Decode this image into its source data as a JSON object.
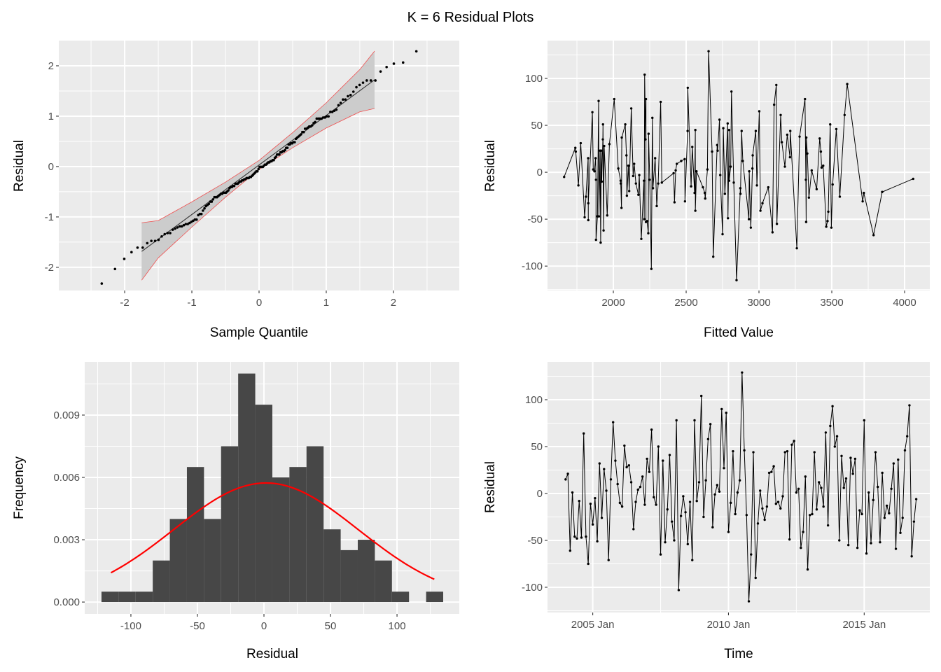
{
  "title": "K = 6 Residual Plots",
  "chart_data": [
    {
      "type": "scatter",
      "kind": "qq-plot",
      "xlabel": "Sample Quantile",
      "ylabel": "Residual",
      "xlim": [
        -2.98,
        2.98
      ],
      "ylim": [
        -2.46,
        2.5
      ],
      "xticks": [
        {
          "v": -2,
          "label": "-2"
        },
        {
          "v": -1,
          "label": "-1"
        },
        {
          "v": 0,
          "label": "0"
        },
        {
          "v": 1,
          "label": "1"
        },
        {
          "v": 2,
          "label": "2"
        }
      ],
      "yticks": [
        {
          "v": -2,
          "label": "-2"
        },
        {
          "v": -1,
          "label": "-1"
        },
        {
          "v": 0,
          "label": "0"
        },
        {
          "v": 1,
          "label": "1"
        },
        {
          "v": 2,
          "label": "2"
        }
      ],
      "reference_line": {
        "slope": 0.983,
        "intercept": 0.032,
        "x_range": [
          -1.747,
          1.719
        ]
      },
      "confidence_band": {
        "x": [
          -1.747,
          -1.5,
          -1.0,
          -0.5,
          0,
          0.5,
          1.0,
          1.5,
          1.719
        ],
        "half_width": [
          0.57,
          0.37,
          0.25,
          0.15,
          0.09,
          0.15,
          0.25,
          0.42,
          0.57
        ]
      },
      "grid": true,
      "colors": {
        "points": "#000000",
        "line": "#333333",
        "band_fill": "#cccccc",
        "band_edge": "#f05050"
      }
    },
    {
      "type": "line",
      "xlabel": "Fitted Value",
      "ylabel": "Residual",
      "xlim": [
        1548,
        4173
      ],
      "ylim": [
        -126,
        140.3
      ],
      "xticks": [
        {
          "v": 2000,
          "label": "2000"
        },
        {
          "v": 2500,
          "label": "2500"
        },
        {
          "v": 3000,
          "label": "3000"
        },
        {
          "v": 3500,
          "label": "3500"
        },
        {
          "v": 4000,
          "label": "4000"
        }
      ],
      "yticks": [
        {
          "v": -100,
          "label": "-100"
        },
        {
          "v": -50,
          "label": "-50"
        },
        {
          "v": 0,
          "label": "0"
        },
        {
          "v": 50,
          "label": "50"
        },
        {
          "v": 100,
          "label": "100"
        }
      ],
      "grid": true,
      "points": [
        [
          1662,
          -5
        ],
        [
          1739,
          26
        ],
        [
          1742,
          22
        ],
        [
          1760,
          -14
        ],
        [
          1776,
          31
        ],
        [
          1803,
          -48
        ],
        [
          1812,
          -26
        ],
        [
          1827,
          15
        ],
        [
          1828,
          -51
        ],
        [
          1828,
          -33
        ],
        [
          1856,
          64
        ],
        [
          1862,
          3
        ],
        [
          1870,
          1
        ],
        [
          1878,
          15
        ],
        [
          1881,
          -8
        ],
        [
          1881,
          -72
        ],
        [
          1891,
          -47
        ],
        [
          1899,
          76
        ],
        [
          1901,
          -47
        ],
        [
          1909,
          23
        ],
        [
          1913,
          -75
        ],
        [
          1917,
          23
        ],
        [
          1920,
          -10
        ],
        [
          1928,
          35
        ],
        [
          1929,
          51
        ],
        [
          1933,
          -62
        ],
        [
          1937,
          28
        ],
        [
          1958,
          -46
        ],
        [
          1973,
          30
        ],
        [
          2006,
          78
        ],
        [
          2034,
          4
        ],
        [
          2050,
          -9
        ],
        [
          2051,
          -12
        ],
        [
          2056,
          -38
        ],
        [
          2058,
          37
        ],
        [
          2082,
          51
        ],
        [
          2090,
          18
        ],
        [
          2093,
          -25
        ],
        [
          2103,
          7
        ],
        [
          2109,
          -20
        ],
        [
          2123,
          68
        ],
        [
          2136,
          -4
        ],
        [
          2143,
          9
        ],
        [
          2155,
          -12
        ],
        [
          2172,
          -24
        ],
        [
          2178,
          -3
        ],
        [
          2192,
          -71
        ],
        [
          2210,
          -9
        ],
        [
          2212,
          -50
        ],
        [
          2215,
          104
        ],
        [
          2221,
          35
        ],
        [
          2224,
          78
        ],
        [
          2224,
          -53
        ],
        [
          2232,
          -52
        ],
        [
          2240,
          -65
        ],
        [
          2242,
          41
        ],
        [
          2250,
          -8
        ],
        [
          2261,
          -103
        ],
        [
          2268,
          58
        ],
        [
          2272,
          -17
        ],
        [
          2287,
          15
        ],
        [
          2298,
          -36
        ],
        [
          2308,
          -12
        ],
        [
          2325,
          75
        ],
        [
          2333,
          -11
        ],
        [
          2414,
          -1
        ],
        [
          2420,
          -32
        ],
        [
          2428,
          2
        ],
        [
          2436,
          9
        ],
        [
          2466,
          12
        ],
        [
          2490,
          14
        ],
        [
          2492,
          -31
        ],
        [
          2510,
          44
        ],
        [
          2511,
          90
        ],
        [
          2534,
          -15
        ],
        [
          2542,
          27
        ],
        [
          2558,
          -22
        ],
        [
          2563,
          45
        ],
        [
          2563,
          -41
        ],
        [
          2571,
          1
        ],
        [
          2615,
          -16
        ],
        [
          2628,
          -22
        ],
        [
          2631,
          -28
        ],
        [
          2646,
          3
        ],
        [
          2654,
          129
        ],
        [
          2678,
          22
        ],
        [
          2686,
          -90
        ],
        [
          2713,
          29
        ],
        [
          2716,
          23
        ],
        [
          2729,
          56
        ],
        [
          2734,
          -3
        ],
        [
          2750,
          -66
        ],
        [
          2755,
          47
        ],
        [
          2766,
          -23
        ],
        [
          2785,
          52
        ],
        [
          2787,
          -49
        ],
        [
          2795,
          45
        ],
        [
          2795,
          -9
        ],
        [
          2806,
          6
        ],
        [
          2811,
          86
        ],
        [
          2827,
          -11
        ],
        [
          2846,
          -115
        ],
        [
          2872,
          -17
        ],
        [
          2873,
          -23
        ],
        [
          2881,
          44
        ],
        [
          2889,
          12
        ],
        [
          2931,
          -50
        ],
        [
          2933,
          1
        ],
        [
          2944,
          -59
        ],
        [
          2955,
          4
        ],
        [
          2957,
          18
        ],
        [
          2978,
          44
        ],
        [
          2986,
          -14
        ],
        [
          3002,
          65
        ],
        [
          3010,
          -41
        ],
        [
          3024,
          -33
        ],
        [
          3064,
          -16
        ],
        [
          3093,
          -64
        ],
        [
          3104,
          72
        ],
        [
          3119,
          93
        ],
        [
          3123,
          -55
        ],
        [
          3149,
          61
        ],
        [
          3157,
          32
        ],
        [
          3178,
          6
        ],
        [
          3194,
          40
        ],
        [
          3213,
          16
        ],
        [
          3215,
          44
        ],
        [
          3260,
          -81
        ],
        [
          3279,
          38
        ],
        [
          3316,
          78
        ],
        [
          3322,
          -8
        ],
        [
          3324,
          -53
        ],
        [
          3325,
          37
        ],
        [
          3332,
          20
        ],
        [
          3343,
          -27
        ],
        [
          3362,
          2
        ],
        [
          3396,
          -18
        ],
        [
          3417,
          36
        ],
        [
          3425,
          22
        ],
        [
          3430,
          5
        ],
        [
          3441,
          7
        ],
        [
          3462,
          -58
        ],
        [
          3471,
          -52
        ],
        [
          3476,
          -42
        ],
        [
          3489,
          51
        ],
        [
          3497,
          -59
        ],
        [
          3506,
          -13
        ],
        [
          3531,
          46
        ],
        [
          3555,
          -26
        ],
        [
          3588,
          61
        ],
        [
          3606,
          94
        ],
        [
          3712,
          -31
        ],
        [
          3720,
          -22
        ],
        [
          3787,
          -67
        ],
        [
          3846,
          -21
        ],
        [
          4059,
          -7
        ]
      ]
    },
    {
      "type": "bar",
      "kind": "histogram",
      "xlabel": "Residual",
      "ylabel": "Frequency",
      "xlim": [
        -134.7,
        146.8
      ],
      "ylim": [
        -0.00057,
        0.01156
      ],
      "xticks": [
        {
          "v": -100,
          "label": "-100"
        },
        {
          "v": -50,
          "label": "-50"
        },
        {
          "v": 0,
          "label": "0"
        },
        {
          "v": 50,
          "label": "50"
        },
        {
          "v": 100,
          "label": "100"
        }
      ],
      "yticks": [
        {
          "v": 0,
          "label": "0.000"
        },
        {
          "v": 0.003,
          "label": "0.003"
        },
        {
          "v": 0.006,
          "label": "0.006"
        },
        {
          "v": 0.009,
          "label": "0.009"
        }
      ],
      "grid": true,
      "bin_edges": [
        -122.1,
        -109.26,
        -96.42,
        -83.58,
        -70.74,
        -57.9,
        -45.06,
        -32.22,
        -19.38,
        -6.54,
        6.3,
        19.14,
        31.98,
        44.82,
        57.66,
        70.5,
        83.34,
        96.18,
        109.02,
        121.86,
        134.7
      ],
      "density": [
        0.0005,
        0.0005,
        0.0005,
        0.002,
        0.004,
        0.0065,
        0.004,
        0.0075,
        0.011,
        0.0095,
        0.006,
        0.0065,
        0.0075,
        0.0035,
        0.0025,
        0.003,
        0.002,
        0.0005,
        0,
        0.0005
      ],
      "normal_curve": {
        "mean": 1.5,
        "sd": 69.6,
        "x_range": [
          -115,
          128
        ]
      },
      "colors": {
        "bars": "#474747",
        "curve": "#ff0000"
      }
    },
    {
      "type": "line",
      "xlabel": "Time",
      "ylabel": "Residual",
      "xlim": [
        "2003-05",
        "2017-06"
      ],
      "ylim": [
        -126.9,
        140.3
      ],
      "xticks": [
        {
          "v": "2005-01",
          "label": "2005 Jan"
        },
        {
          "v": "2010-01",
          "label": "2010 Jan"
        },
        {
          "v": "2015-01",
          "label": "2015 Jan"
        }
      ],
      "yticks": [
        {
          "v": -100,
          "label": "-100"
        },
        {
          "v": -50,
          "label": "-50"
        },
        {
          "v": 0,
          "label": "0"
        },
        {
          "v": 50,
          "label": "50"
        },
        {
          "v": 100,
          "label": "100"
        }
      ],
      "grid": true,
      "x": [
        "2004-01",
        "2004-02",
        "2004-03",
        "2004-04",
        "2004-05",
        "2004-06",
        "2004-07",
        "2004-08",
        "2004-09",
        "2004-10",
        "2004-11",
        "2004-12",
        "2005-01",
        "2005-02",
        "2005-03",
        "2005-04",
        "2005-05",
        "2005-06",
        "2005-07",
        "2005-08",
        "2005-09",
        "2005-10",
        "2005-11",
        "2005-12",
        "2006-01",
        "2006-02",
        "2006-03",
        "2006-04",
        "2006-05",
        "2006-06",
        "2006-07",
        "2006-08",
        "2006-09",
        "2006-10",
        "2006-11",
        "2006-12",
        "2007-01",
        "2007-02",
        "2007-03",
        "2007-04",
        "2007-05",
        "2007-06",
        "2007-07",
        "2007-08",
        "2007-09",
        "2007-10",
        "2007-11",
        "2007-12",
        "2008-01",
        "2008-02",
        "2008-03",
        "2008-04",
        "2008-05",
        "2008-06",
        "2008-07",
        "2008-08",
        "2008-09",
        "2008-10",
        "2008-11",
        "2008-12",
        "2009-01",
        "2009-02",
        "2009-03",
        "2009-04",
        "2009-05",
        "2009-06",
        "2009-07",
        "2009-08",
        "2009-09",
        "2009-10",
        "2009-11",
        "2009-12",
        "2010-01",
        "2010-02",
        "2010-03",
        "2010-04",
        "2010-05",
        "2010-06",
        "2010-07",
        "2010-08",
        "2010-09",
        "2010-10",
        "2010-11",
        "2010-12",
        "2011-01",
        "2011-02",
        "2011-03",
        "2011-04",
        "2011-05",
        "2011-06",
        "2011-07",
        "2011-08",
        "2011-09",
        "2011-10",
        "2011-11",
        "2011-12",
        "2012-01",
        "2012-02",
        "2012-03",
        "2012-04",
        "2012-05",
        "2012-06",
        "2012-07",
        "2012-08",
        "2012-09",
        "2012-10",
        "2012-11",
        "2012-12",
        "2013-01",
        "2013-02",
        "2013-03",
        "2013-04",
        "2013-05",
        "2013-06",
        "2013-07",
        "2013-08",
        "2013-09",
        "2013-10",
        "2013-11",
        "2013-12",
        "2014-01",
        "2014-02",
        "2014-03",
        "2014-04",
        "2014-05",
        "2014-06",
        "2014-07",
        "2014-08",
        "2014-09",
        "2014-10",
        "2014-11",
        "2014-12",
        "2015-01",
        "2015-02",
        "2015-03",
        "2015-04",
        "2015-05",
        "2015-06",
        "2015-07",
        "2015-08",
        "2015-09",
        "2015-10",
        "2015-11",
        "2015-12",
        "2016-01",
        "2016-02",
        "2016-03",
        "2016-04",
        "2016-05",
        "2016-06",
        "2016-07",
        "2016-08",
        "2016-09",
        "2016-10",
        "2016-11",
        "2016-12"
      ],
      "values": [
        15,
        21,
        -61,
        1,
        -46,
        -48,
        -8,
        -47,
        64,
        -46,
        -75,
        -11,
        -33,
        -5,
        -51,
        32,
        -26,
        26,
        3,
        -71,
        15,
        76,
        35,
        10,
        -10,
        -14,
        51,
        28,
        30,
        12,
        -38,
        -9,
        4,
        7,
        18,
        -12,
        37,
        23,
        68,
        -4,
        -12,
        50,
        -65,
        35,
        -52,
        -17,
        41,
        -30,
        -50,
        78,
        -103,
        -24,
        -3,
        -20,
        -54,
        -9,
        -71,
        78,
        -8,
        12,
        104,
        -25,
        14,
        58,
        74,
        -36,
        -1,
        9,
        2,
        90,
        27,
        86,
        -41,
        -10,
        45,
        -22,
        1,
        14,
        129,
        46,
        -23,
        -115,
        -65,
        44,
        -90,
        -32,
        3,
        -16,
        -28,
        -14,
        22,
        23,
        29,
        -11,
        -9,
        -16,
        -3,
        44,
        45,
        -49,
        52,
        56,
        1,
        5,
        -58,
        -41,
        18,
        -81,
        -23,
        -22,
        44,
        -17,
        12,
        6,
        -14,
        65,
        -34,
        72,
        93,
        50,
        61,
        -50,
        40,
        6,
        16,
        -55,
        38,
        21,
        37,
        -58,
        -18,
        -22,
        78,
        -64,
        1,
        -53,
        -7,
        44,
        7,
        -52,
        22,
        -26,
        -13,
        -21,
        5,
        32,
        -59,
        36,
        -42,
        -26,
        46,
        61,
        94,
        -67,
        -30,
        -6
      ]
    }
  ]
}
